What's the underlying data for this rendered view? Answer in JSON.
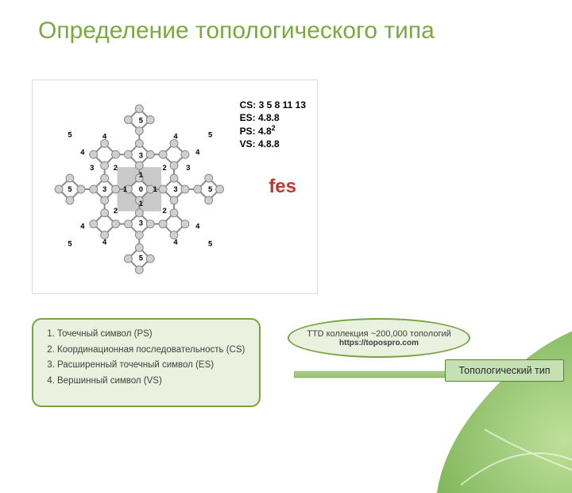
{
  "colors": {
    "accent_green": "#6fac46",
    "title_green": "#7aa93e",
    "accent_red": "#c0392b",
    "box_fill": "#eaf1de",
    "box_border": "#77a440",
    "oval_fill": "#eaf1de",
    "oval_border": "#77a440",
    "arrow_fill": "#9bc169",
    "result_fill": "#c5e0b3",
    "result_border": "#548235",
    "node_fill": "#d0d0d0",
    "node_stroke": "#8a8a8a",
    "edge_stroke": "#8a8a8a",
    "center_fill": "#9e9e9e",
    "text_black": "#000000",
    "leaf_green": "#8cc152"
  },
  "title": "Определение топологического типа",
  "figure": {
    "cs": "CS: 3 5 8 11 13",
    "es": "ES: 4.8.8",
    "ps_prefix": "PS: 4.8",
    "ps_sup": "2",
    "vs": "VS: 4.8.8",
    "fes": "fes"
  },
  "list": {
    "i1": "Точечный символ (PS)",
    "i2": "Координационная последовательность (CS)",
    "i3": "Расширенный точечный символ (ES)",
    "i4": "Вершинный символ (VS)"
  },
  "oval": {
    "line1": "TTD коллекция ~200,000 топологий",
    "line2": "https://topospro.com"
  },
  "result": "Топологический тип"
}
